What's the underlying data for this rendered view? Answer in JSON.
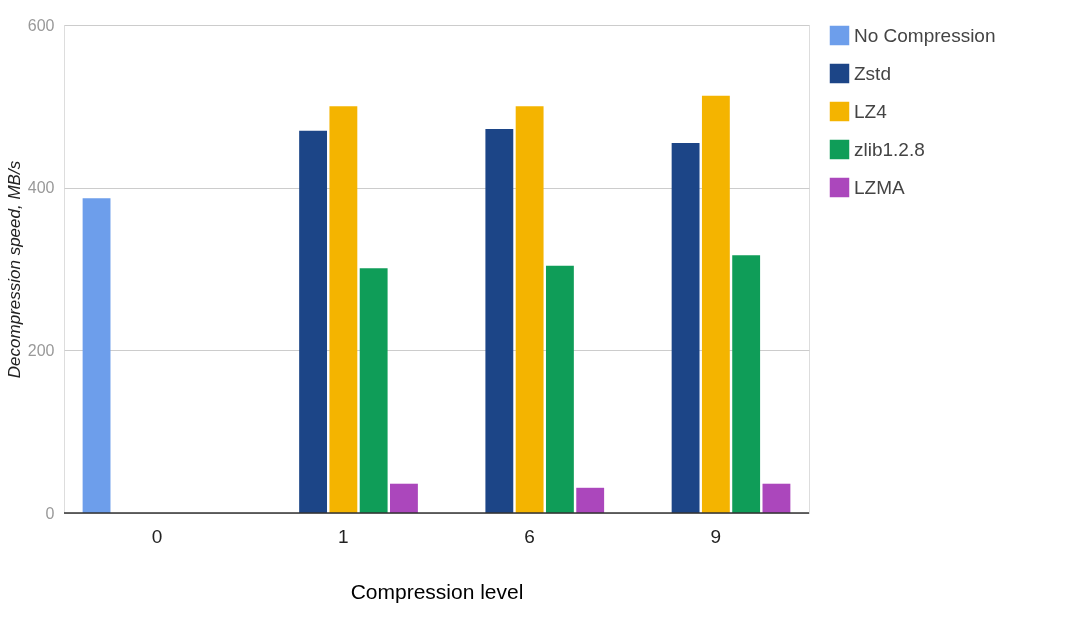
{
  "chart_data": {
    "type": "bar",
    "xlabel": "Compression level",
    "ylabel": "Decompression speed, MB/s",
    "categories": [
      "0",
      "1",
      "6",
      "9"
    ],
    "series": [
      {
        "name": "No Compression",
        "color": "#6d9eeb",
        "values": [
          387,
          null,
          null,
          null
        ]
      },
      {
        "name": "Zstd",
        "color": "#1c4587",
        "values": [
          null,
          470,
          472,
          455
        ]
      },
      {
        "name": "LZ4",
        "color": "#f4b400",
        "values": [
          null,
          500,
          500,
          513
        ]
      },
      {
        "name": "zlib1.2.8",
        "color": "#0f9d58",
        "values": [
          null,
          301,
          304,
          317
        ]
      },
      {
        "name": "LZMA",
        "color": "#ab47bc",
        "values": [
          null,
          36,
          31,
          36
        ]
      }
    ],
    "ylim": [
      0,
      600
    ],
    "yticks": [
      0,
      200,
      400,
      600
    ],
    "grid": "y",
    "legend": "top right"
  }
}
